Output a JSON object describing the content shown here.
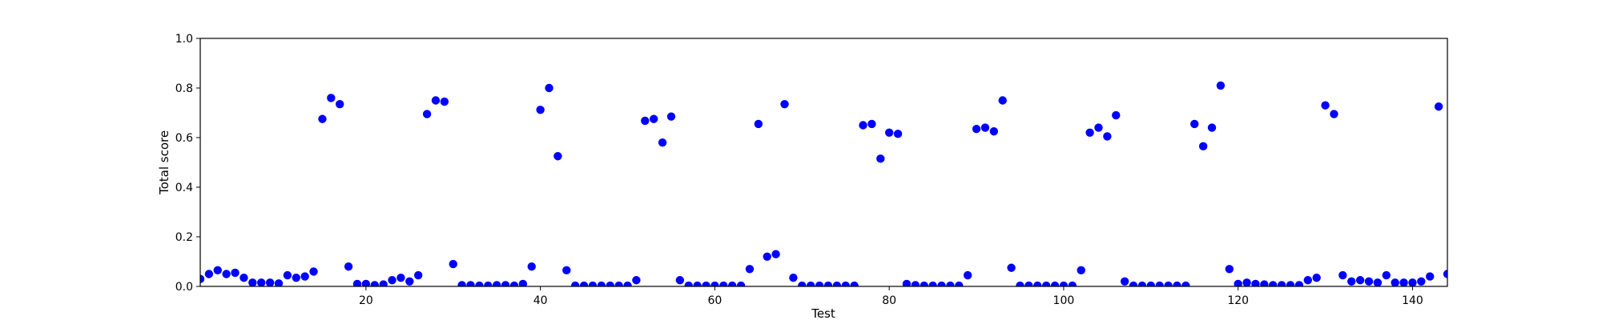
{
  "chart_data": {
    "type": "scatter",
    "xlabel": "Test",
    "ylabel": "Total score",
    "xlim": [
      1,
      144
    ],
    "ylim": [
      0.0,
      1.0
    ],
    "x_ticks": [
      20,
      40,
      60,
      80,
      100,
      120,
      140
    ],
    "x_tick_labels": [
      "20",
      "40",
      "60",
      "80",
      "100",
      "120",
      "140"
    ],
    "y_ticks": [
      0.0,
      0.2,
      0.4,
      0.6,
      0.8,
      1.0
    ],
    "y_tick_labels": [
      "0.0",
      "0.2",
      "0.4",
      "0.6",
      "0.8",
      "1.0"
    ],
    "grid": false,
    "marker_color": "#0000ff",
    "series": [
      {
        "x": [
          1,
          2,
          3,
          4,
          5,
          6,
          7,
          8,
          9,
          10,
          11,
          12,
          13,
          14,
          15,
          16,
          17,
          18,
          19,
          20,
          21,
          22,
          23,
          24,
          25,
          26,
          27,
          28,
          29,
          30,
          31,
          32,
          33,
          34,
          35,
          36,
          37,
          38,
          39,
          40,
          41,
          42,
          43,
          44,
          45,
          46,
          47,
          48,
          49,
          50,
          51,
          52,
          53,
          54,
          55,
          56,
          57,
          58,
          59,
          60,
          61,
          62,
          63,
          64,
          65,
          66,
          67,
          68,
          69,
          70,
          71,
          72,
          73,
          74,
          75,
          76,
          77,
          78,
          79,
          80,
          81,
          82,
          83,
          84,
          85,
          86,
          87,
          88,
          89,
          90,
          91,
          92,
          93,
          94,
          95,
          96,
          97,
          98,
          99,
          100,
          101,
          102,
          103,
          104,
          105,
          106,
          107,
          108,
          109,
          110,
          111,
          112,
          113,
          114,
          115,
          116,
          117,
          118,
          119,
          120,
          121,
          122,
          123,
          124,
          125,
          126,
          127,
          128,
          129,
          130,
          131,
          132,
          133,
          134,
          135,
          136,
          137,
          138,
          139,
          140,
          141,
          142,
          143,
          144
        ],
        "y": [
          0.03,
          0.05,
          0.065,
          0.05,
          0.055,
          0.035,
          0.015,
          0.015,
          0.015,
          0.012,
          0.045,
          0.035,
          0.04,
          0.06,
          0.675,
          0.76,
          0.735,
          0.08,
          0.01,
          0.01,
          0.005,
          0.008,
          0.025,
          0.035,
          0.02,
          0.045,
          0.695,
          0.75,
          0.745,
          0.09,
          0.005,
          0.005,
          0.003,
          0.003,
          0.005,
          0.005,
          0.003,
          0.01,
          0.08,
          0.712,
          0.8,
          0.525,
          0.065,
          0.003,
          0.003,
          0.003,
          0.003,
          0.003,
          0.003,
          0.003,
          0.025,
          0.668,
          0.675,
          0.58,
          0.685,
          0.025,
          0.003,
          0.003,
          0.003,
          0.003,
          0.003,
          0.003,
          0.003,
          0.07,
          0.655,
          0.12,
          0.13,
          0.735,
          0.035,
          0.003,
          0.003,
          0.003,
          0.003,
          0.003,
          0.003,
          0.003,
          0.65,
          0.655,
          0.515,
          0.62,
          0.615,
          0.01,
          0.005,
          0.003,
          0.003,
          0.003,
          0.003,
          0.003,
          0.045,
          0.635,
          0.64,
          0.625,
          0.75,
          0.075,
          0.003,
          0.003,
          0.003,
          0.003,
          0.003,
          0.003,
          0.003,
          0.065,
          0.62,
          0.64,
          0.605,
          0.69,
          0.02,
          0.003,
          0.003,
          0.003,
          0.003,
          0.003,
          0.003,
          0.003,
          0.655,
          0.565,
          0.64,
          0.81,
          0.07,
          0.01,
          0.015,
          0.01,
          0.008,
          0.005,
          0.005,
          0.005,
          0.005,
          0.025,
          0.035,
          0.73,
          0.695,
          0.045,
          0.02,
          0.025,
          0.02,
          0.015,
          0.045,
          0.015,
          0.015,
          0.015,
          0.02,
          0.04,
          0.725,
          0.05
        ]
      }
    ]
  }
}
